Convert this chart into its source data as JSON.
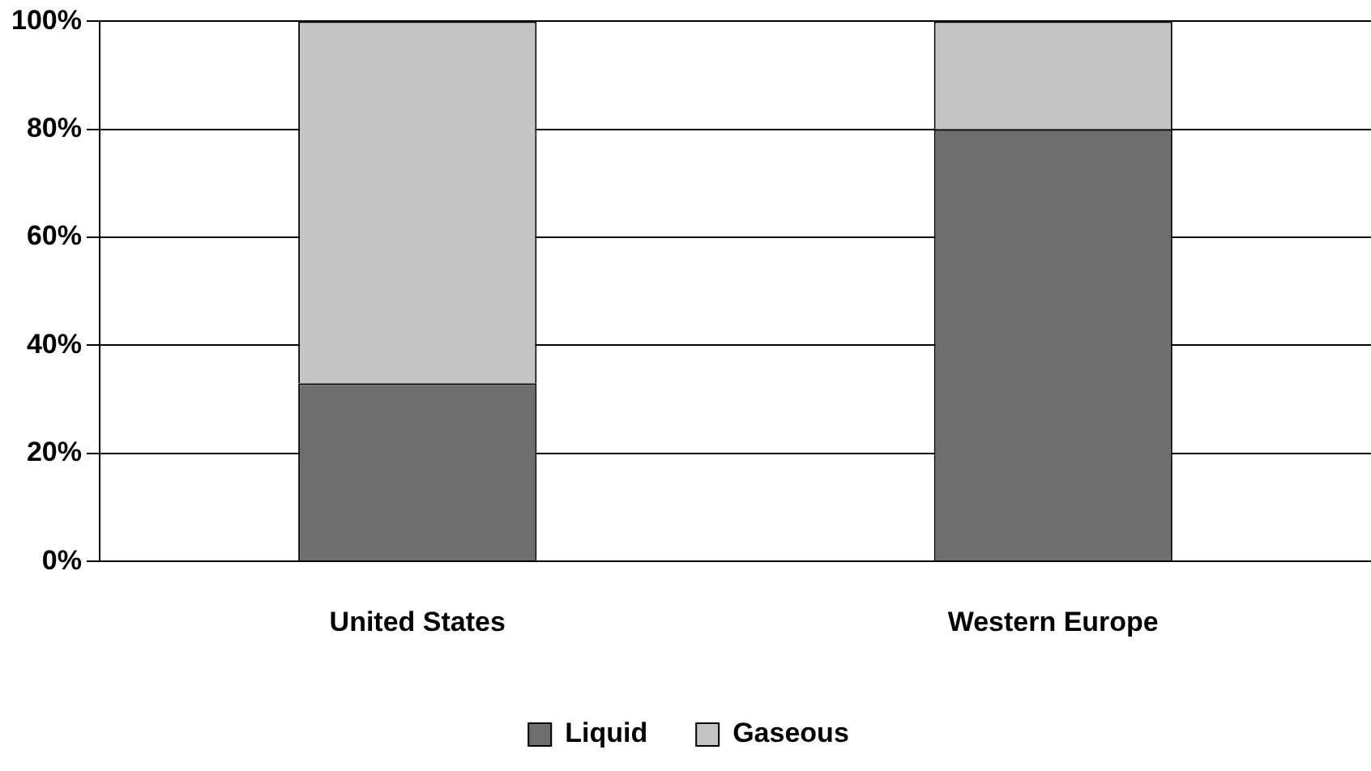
{
  "chart_data": {
    "type": "bar",
    "stacked": true,
    "categories": [
      "United States",
      "Western Europe"
    ],
    "series": [
      {
        "name": "Liquid",
        "color": "#6e6e6e",
        "values": [
          33,
          80
        ]
      },
      {
        "name": "Gaseous",
        "color": "#c4c4c4",
        "values": [
          67,
          20
        ]
      }
    ],
    "ylim": [
      0,
      100
    ],
    "yticks": [
      {
        "value": 0,
        "label": "0%"
      },
      {
        "value": 20,
        "label": "20%"
      },
      {
        "value": 40,
        "label": "40%"
      },
      {
        "value": 60,
        "label": "60%"
      },
      {
        "value": 80,
        "label": "80%"
      },
      {
        "value": 100,
        "label": "100%"
      }
    ],
    "grid": "y",
    "legend": "bottom"
  }
}
